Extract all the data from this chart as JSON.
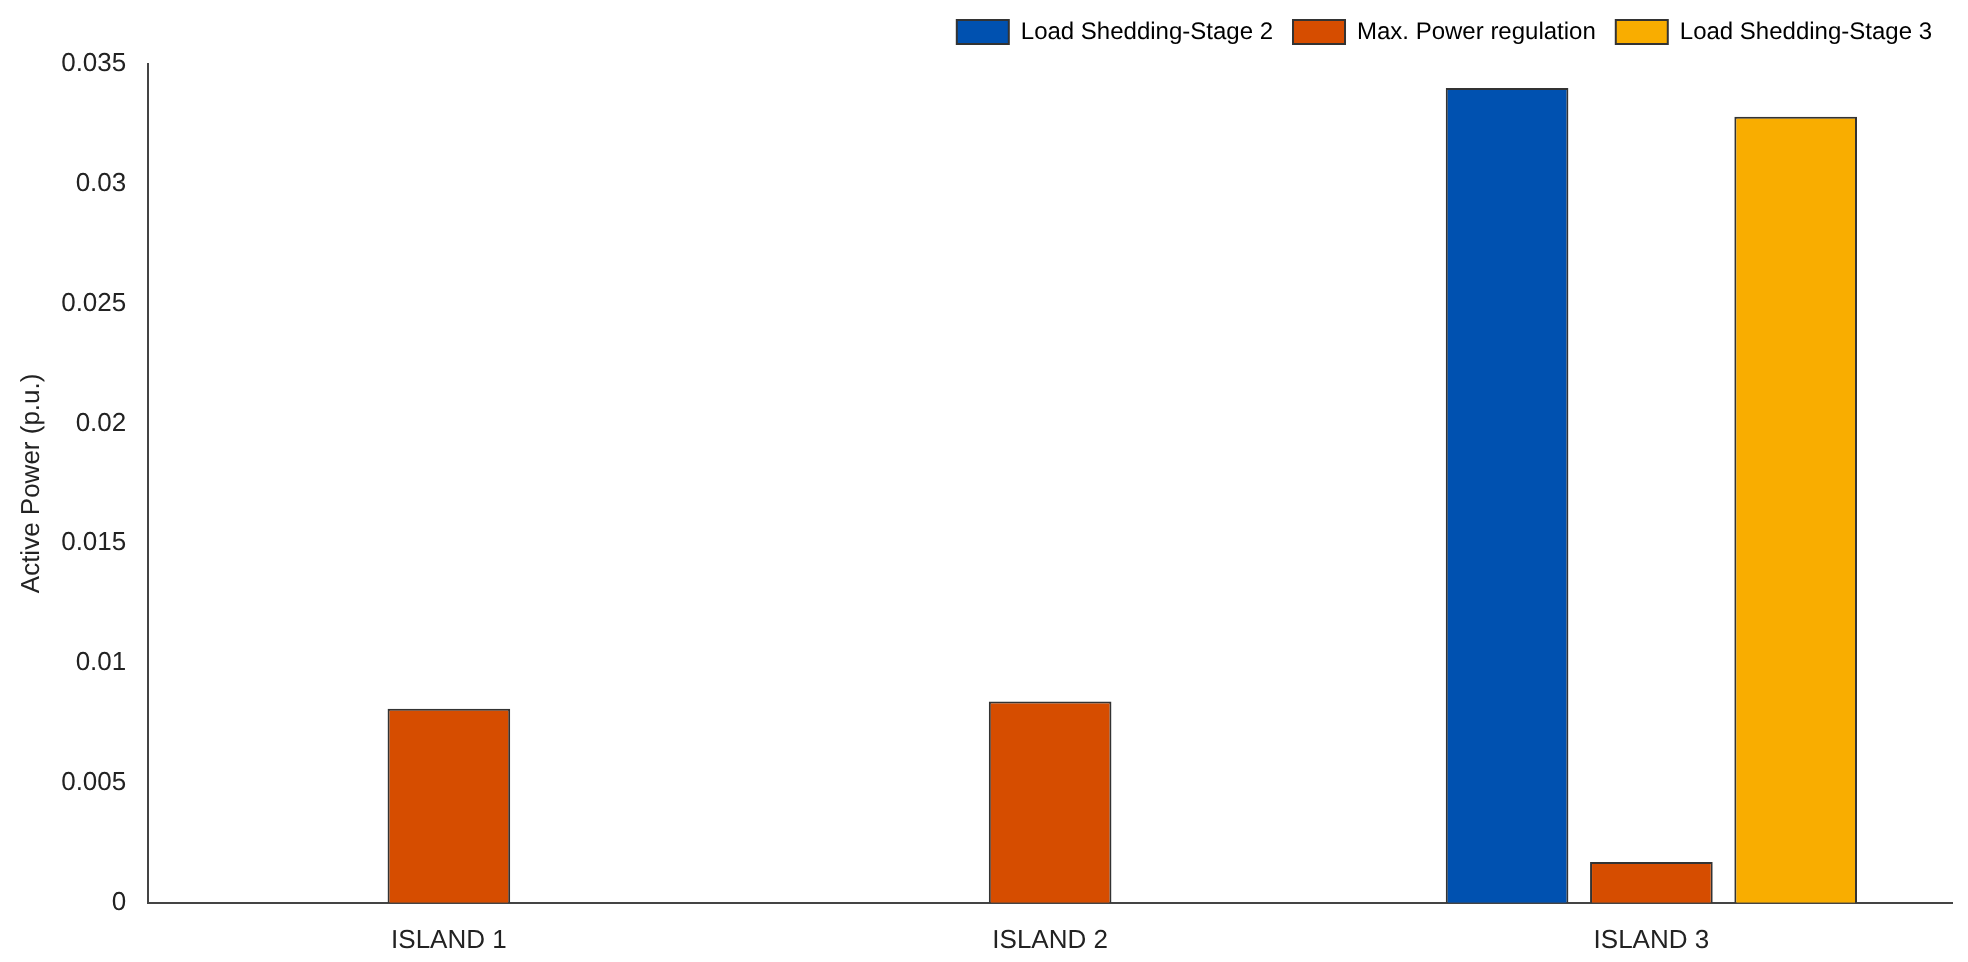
{
  "chart_data": {
    "type": "bar",
    "ylabel": "Active Power (p.u.)",
    "categories": [
      "ISLAND 1",
      "ISLAND 2",
      "ISLAND 3"
    ],
    "series": [
      {
        "name": "Load Shedding-Stage 2",
        "color": "#0051b0",
        "values": [
          0,
          0,
          0.034
        ]
      },
      {
        "name": "Max. Power regulation",
        "color": "#d64d00",
        "values": [
          0.0081,
          0.0084,
          0.0017
        ]
      },
      {
        "name": "Load Shedding-Stage 3",
        "color": "#f9ad00",
        "values": [
          0,
          0,
          0.0328
        ]
      }
    ],
    "ylim": [
      0,
      0.035
    ],
    "yticks": [
      0,
      0.005,
      0.01,
      0.015,
      0.02,
      0.025,
      0.03,
      0.035
    ],
    "grid": false,
    "legend": "top right"
  }
}
